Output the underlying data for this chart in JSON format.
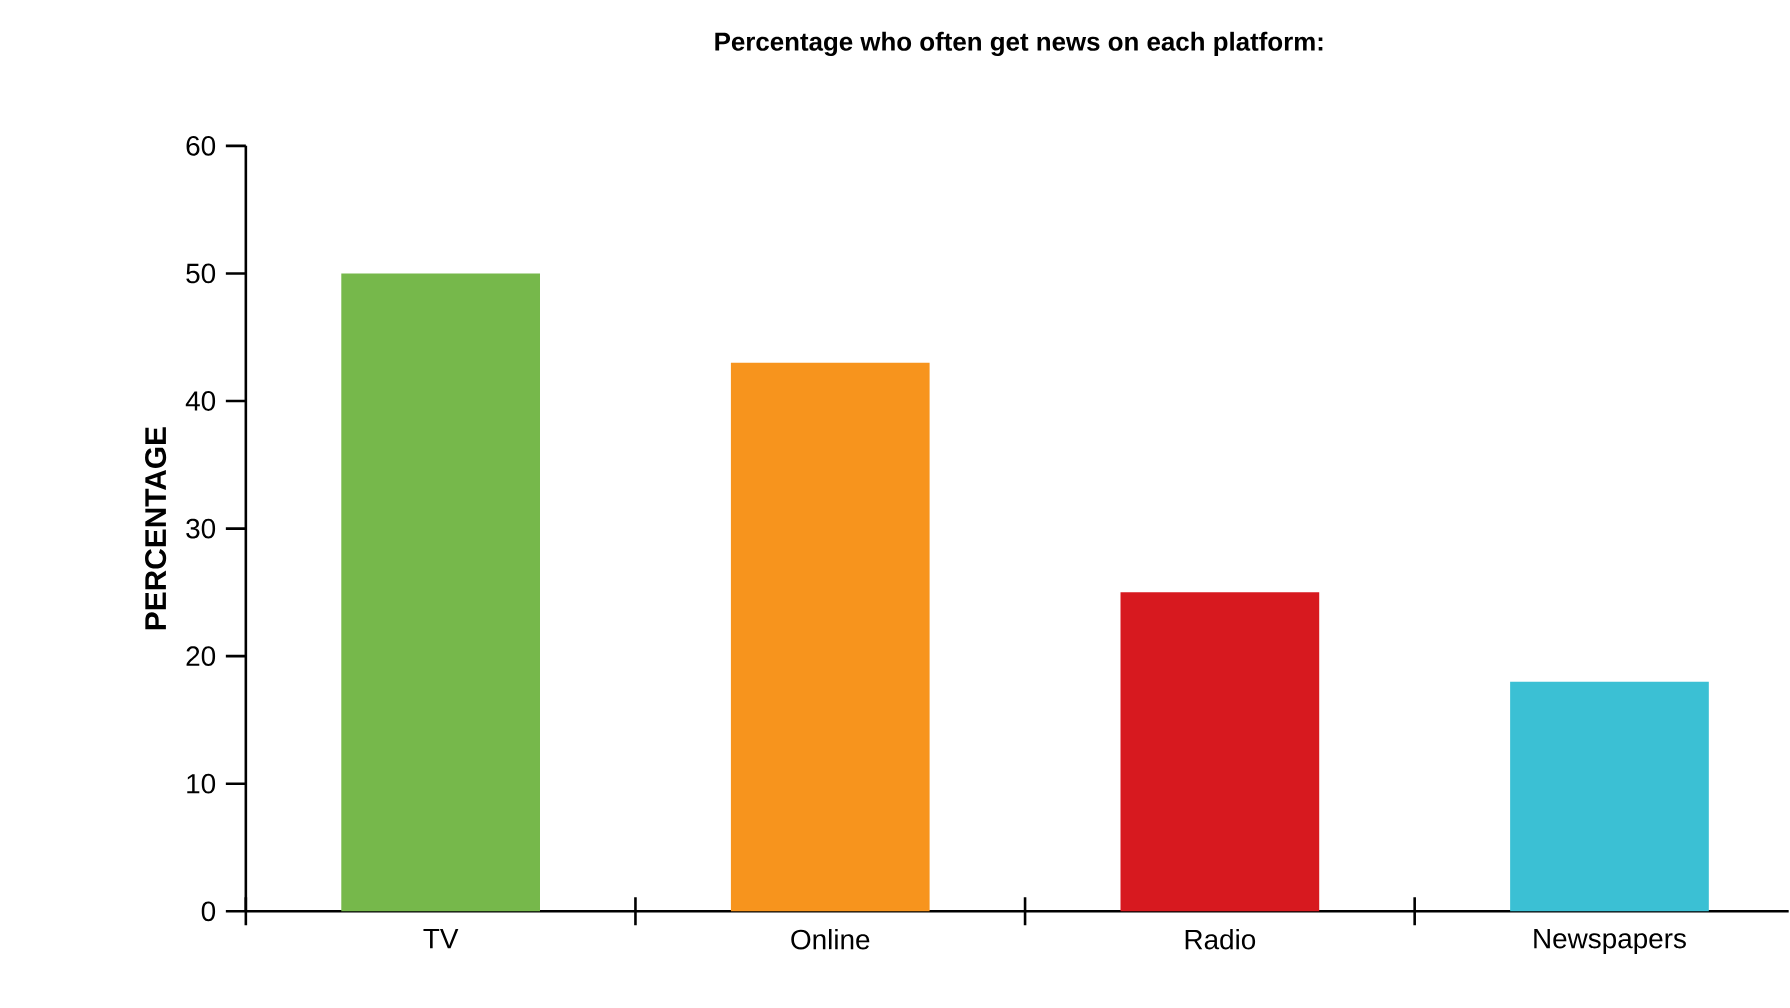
{
  "chart_data": {
    "type": "bar",
    "title": "Percentage who often get news on each platform:",
    "ylabel": "PERCENTAGE",
    "categories": [
      "TV",
      "Online",
      "Radio",
      "Newspapers"
    ],
    "values": [
      50,
      43,
      25,
      18
    ],
    "colors": [
      "#76b84b",
      "#f7941d",
      "#d7191f",
      "#3bc0d4"
    ],
    "ylim": [
      0,
      60
    ],
    "yticks": [
      0,
      10,
      20,
      30,
      40,
      50,
      60
    ]
  }
}
